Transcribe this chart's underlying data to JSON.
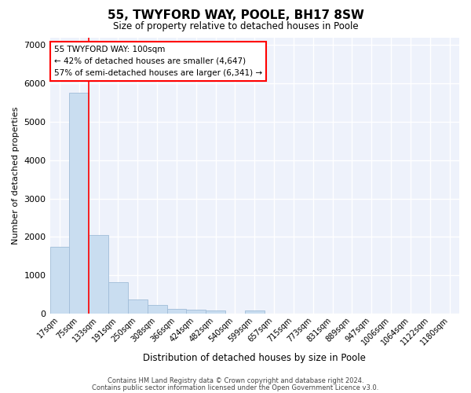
{
  "title": "55, TWYFORD WAY, POOLE, BH17 8SW",
  "subtitle": "Size of property relative to detached houses in Poole",
  "xlabel": "Distribution of detached houses by size in Poole",
  "ylabel": "Number of detached properties",
  "bar_color": "#c9ddf0",
  "bar_edge_color": "#a0bcd8",
  "bg_color": "#eef2fb",
  "grid_color": "white",
  "categories": [
    "17sqm",
    "75sqm",
    "133sqm",
    "191sqm",
    "250sqm",
    "308sqm",
    "366sqm",
    "424sqm",
    "482sqm",
    "540sqm",
    "599sqm",
    "657sqm",
    "715sqm",
    "773sqm",
    "831sqm",
    "889sqm",
    "947sqm",
    "1006sqm",
    "1064sqm",
    "1122sqm",
    "1180sqm"
  ],
  "values": [
    1750,
    5750,
    2050,
    825,
    375,
    225,
    130,
    110,
    75,
    0,
    75,
    0,
    0,
    0,
    0,
    0,
    0,
    0,
    0,
    0,
    0
  ],
  "ylim": [
    0,
    7200
  ],
  "yticks": [
    0,
    1000,
    2000,
    3000,
    4000,
    5000,
    6000,
    7000
  ],
  "red_line_x": 1.5,
  "annotation_line1": "55 TWYFORD WAY: 100sqm",
  "annotation_line2": "← 42% of detached houses are smaller (4,647)",
  "annotation_line3": "57% of semi-detached houses are larger (6,341) →",
  "footer1": "Contains HM Land Registry data © Crown copyright and database right 2024.",
  "footer2": "Contains public sector information licensed under the Open Government Licence v3.0."
}
